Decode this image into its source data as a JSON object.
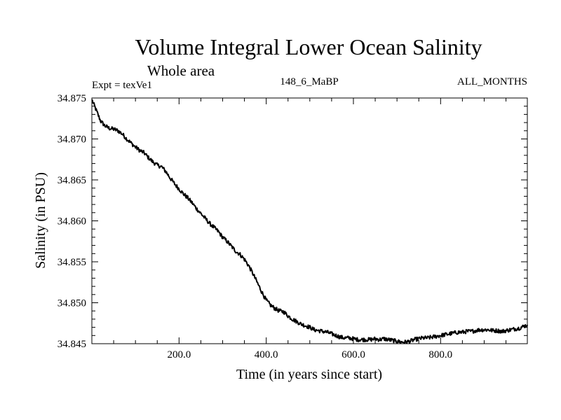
{
  "chart_data": {
    "type": "line",
    "title": "Volume Integral Lower Ocean Salinity",
    "subtitle": "Whole area",
    "experiment_label": "Expt = texVe1",
    "run_label": "148_6_MaBP",
    "months_label": "ALL_MONTHS",
    "xlabel": "Time (in years since start)",
    "ylabel": "Salinity (in PSU)",
    "xlim": [
      0,
      999
    ],
    "ylim": [
      34.845,
      34.875
    ],
    "xticks": [
      200,
      400,
      600,
      800
    ],
    "xtick_labels": [
      "200.0",
      "400.0",
      "600.0",
      "800.0"
    ],
    "yticks": [
      34.845,
      34.85,
      34.855,
      34.86,
      34.865,
      34.87,
      34.875
    ],
    "ytick_labels": [
      "34.845",
      "34.850",
      "34.855",
      "34.860",
      "34.865",
      "34.870",
      "34.875"
    ],
    "grid": false,
    "series": [
      {
        "name": "Volume integral lower ocean salinity",
        "x": [
          0,
          10,
          20,
          30,
          40,
          50,
          60,
          70,
          80,
          90,
          100,
          110,
          120,
          130,
          140,
          150,
          160,
          170,
          180,
          190,
          200,
          210,
          220,
          230,
          240,
          250,
          260,
          270,
          280,
          290,
          300,
          310,
          320,
          330,
          340,
          350,
          360,
          370,
          380,
          390,
          400,
          410,
          420,
          430,
          440,
          450,
          460,
          470,
          480,
          490,
          500,
          510,
          520,
          530,
          540,
          550,
          560,
          570,
          580,
          590,
          600,
          610,
          620,
          630,
          640,
          650,
          660,
          670,
          680,
          690,
          700,
          710,
          720,
          730,
          740,
          750,
          760,
          770,
          780,
          790,
          800,
          810,
          820,
          830,
          840,
          850,
          860,
          870,
          880,
          890,
          900,
          910,
          920,
          930,
          940,
          950,
          960,
          970,
          980,
          990,
          999
        ],
        "values": [
          34.8748,
          34.8735,
          34.8722,
          34.8716,
          34.8713,
          34.8712,
          34.871,
          34.8706,
          34.87,
          34.8695,
          34.869,
          34.8686,
          34.8683,
          34.8677,
          34.8672,
          34.8668,
          34.8666,
          34.866,
          34.8652,
          34.8645,
          34.8639,
          34.8633,
          34.8628,
          34.8622,
          34.8615,
          34.8609,
          34.8603,
          34.8597,
          34.8592,
          34.8587,
          34.858,
          34.8575,
          34.8569,
          34.8563,
          34.8559,
          34.8553,
          34.8545,
          34.8535,
          34.8524,
          34.8513,
          34.8503,
          34.8497,
          34.8493,
          34.849,
          34.8489,
          34.8484,
          34.848,
          34.8477,
          34.8474,
          34.8472,
          34.847,
          34.8467,
          34.8466,
          34.8465,
          34.8464,
          34.8462,
          34.846,
          34.8458,
          34.8457,
          34.8457,
          34.8456,
          34.8455,
          34.8455,
          34.8455,
          34.8455,
          34.8456,
          34.8455,
          34.8456,
          34.8455,
          34.8454,
          34.8453,
          34.8452,
          34.8452,
          34.8453,
          34.8455,
          34.8456,
          34.8457,
          34.8457,
          34.8458,
          34.8459,
          34.846,
          34.8461,
          34.8462,
          34.8463,
          34.8464,
          34.8464,
          34.8465,
          34.8465,
          34.8466,
          34.8467,
          34.8467,
          34.8467,
          34.8466,
          34.8466,
          34.8465,
          34.8466,
          34.8467,
          34.8468,
          34.8469,
          34.8471,
          34.8473
        ]
      }
    ]
  }
}
